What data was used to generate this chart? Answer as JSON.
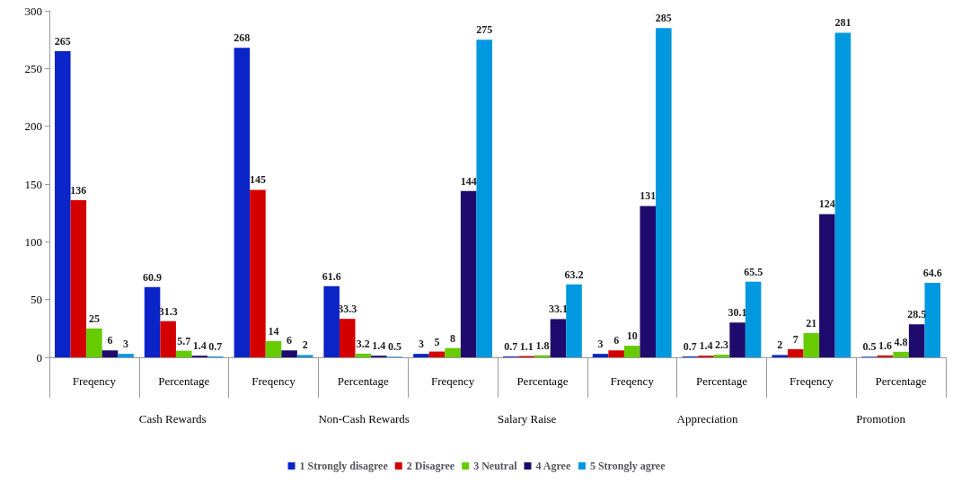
{
  "chart_data": {
    "type": "bar",
    "categories": [
      "Freqency",
      "Percentage",
      "Freqency",
      "Percentage",
      "Freqency",
      "Percentage",
      "Freqency",
      "Percentage",
      "Freqency",
      "Percentage"
    ],
    "series": [
      {
        "name": "1 Strongly disagree",
        "color": "#0a24c8",
        "values": [
          265,
          60.9,
          268,
          61.6,
          3,
          0.7,
          3,
          0.7,
          2,
          0.5
        ]
      },
      {
        "name": "2 Disagree",
        "color": "#d40000",
        "values": [
          136,
          31.3,
          145,
          33.3,
          5,
          1.1,
          6,
          1.4,
          7,
          1.6
        ]
      },
      {
        "name": "3 Neutral",
        "color": "#66cc00",
        "values": [
          25,
          5.7,
          14,
          3.2,
          8,
          1.8,
          10,
          2.3,
          21,
          4.8
        ]
      },
      {
        "name": "4 Agree",
        "color": "#1f0a6e",
        "values": [
          6,
          1.4,
          6,
          1.4,
          144,
          33.1,
          131,
          30.1,
          124,
          28.5
        ]
      },
      {
        "name": "5 Strongly agree",
        "color": "#0099e0",
        "values": [
          3,
          0.7,
          2,
          0.5,
          275,
          63.2,
          285,
          65.5,
          281,
          64.6
        ]
      }
    ],
    "annotations": [
      "Cash Rewards",
      "Non-Cash Rewards",
      "Salary Raise",
      "Appreciation",
      "Promotion"
    ],
    "ylim": [
      0,
      300
    ],
    "yticks": [
      0,
      50,
      100,
      150,
      200,
      250,
      300
    ],
    "grid": false,
    "legend": "bottom",
    "data_labels": true
  }
}
